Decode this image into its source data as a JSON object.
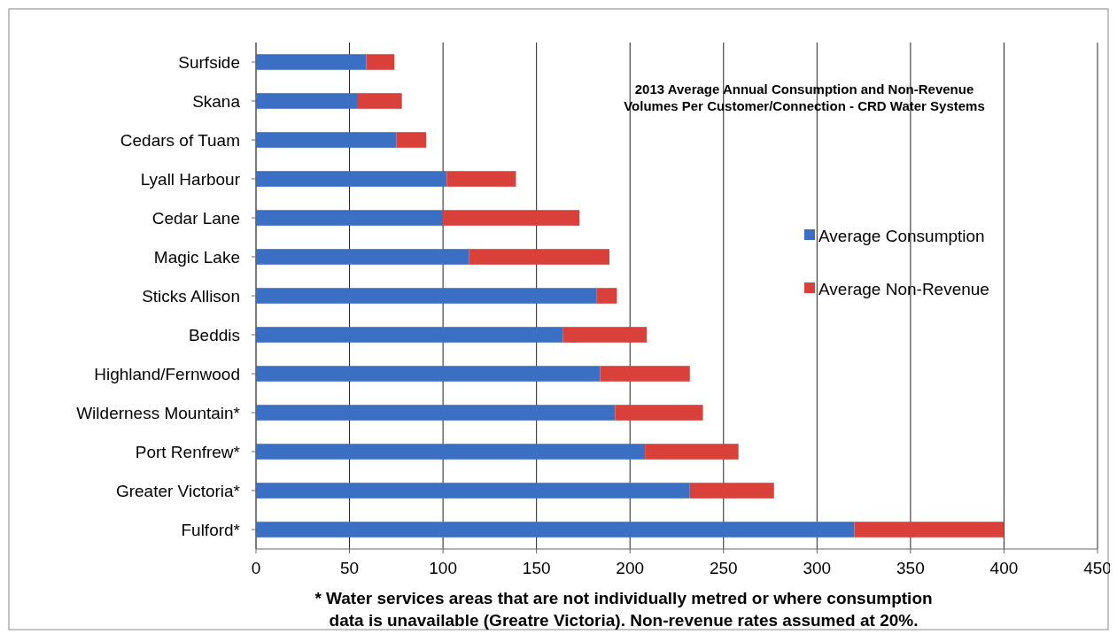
{
  "chart_data": {
    "type": "bar",
    "orientation": "horizontal",
    "stacked": true,
    "title": "2013 Average Annual Consumption and Non-Revenue Volumes Per Customer/Connection - CRD Water Systems",
    "categories": [
      "Surfside",
      "Skana",
      "Cedars of Tuam",
      "Lyall Harbour",
      "Cedar Lane",
      "Magic Lake",
      "Sticks Allison",
      "Beddis",
      "Highland/Fernwood",
      "Wilderness Mountain*",
      "Port Renfrew*",
      "Greater Victoria*",
      "Fulford*"
    ],
    "series": [
      {
        "name": "Average Consumption",
        "color": "#3a6fc4",
        "values": [
          59,
          54,
          75,
          102,
          100,
          114,
          182,
          164,
          184,
          192,
          208,
          232,
          320
        ]
      },
      {
        "name": "Average Non-Revenue",
        "color": "#d9403a",
        "values": [
          15,
          24,
          16,
          37,
          73,
          75,
          11,
          45,
          48,
          47,
          50,
          45,
          80
        ]
      }
    ],
    "xlim": [
      0,
      450
    ],
    "xticks": [
      0,
      50,
      100,
      150,
      200,
      250,
      300,
      350,
      400,
      450
    ],
    "grid": "x",
    "legend": "right",
    "annotations": [
      "* Water services areas that are not individually metred  or  where consumption data is unavailable (Greatre Victoria). Non-revenue rates  assumed at 20%."
    ]
  }
}
